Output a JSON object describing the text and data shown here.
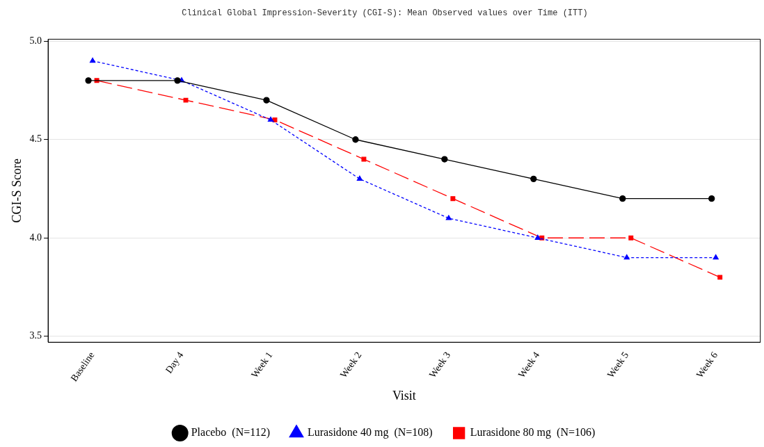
{
  "chart_data": {
    "type": "line",
    "title": "Clinical Global Impression-Severity (CGI-S): Mean Observed values over Time (ITT)",
    "xlabel": "Visit",
    "ylabel": "CGI-S Score",
    "categories": [
      "Baseline",
      "Day 4",
      "Week 1",
      "Week 2",
      "Week 3",
      "Week 4",
      "Week 5",
      "Week 6"
    ],
    "ylim": [
      3.47,
      5.01
    ],
    "yticks": [
      {
        "value": 3.5,
        "label": "3.5"
      },
      {
        "value": 4,
        "label": "4.0"
      },
      {
        "value": 4.5,
        "label": "4.5"
      },
      {
        "value": 5,
        "label": "5.0"
      }
    ],
    "grid": "y",
    "legend": "bottom",
    "series": [
      {
        "name": "Placebo  (N=112)",
        "color": "#000000",
        "marker": "circle",
        "line_style": "solid",
        "values": [
          4.8,
          4.8,
          4.7,
          4.5,
          4.4,
          4.3,
          4.2,
          4.2
        ]
      },
      {
        "name": "Lurasidone 40 mg  (N=108)",
        "color": "#0000ff",
        "marker": "triangle",
        "line_style": "dotted",
        "values": [
          4.9,
          4.8,
          4.6,
          4.3,
          4.1,
          4.0,
          3.9,
          3.9
        ]
      },
      {
        "name": "Lurasidone 80 mg  (N=106)",
        "color": "#ff0000",
        "marker": "square",
        "line_style": "dashed",
        "values": [
          4.8,
          4.7,
          4.6,
          4.4,
          4.2,
          4.0,
          4.0,
          3.8
        ]
      }
    ]
  }
}
